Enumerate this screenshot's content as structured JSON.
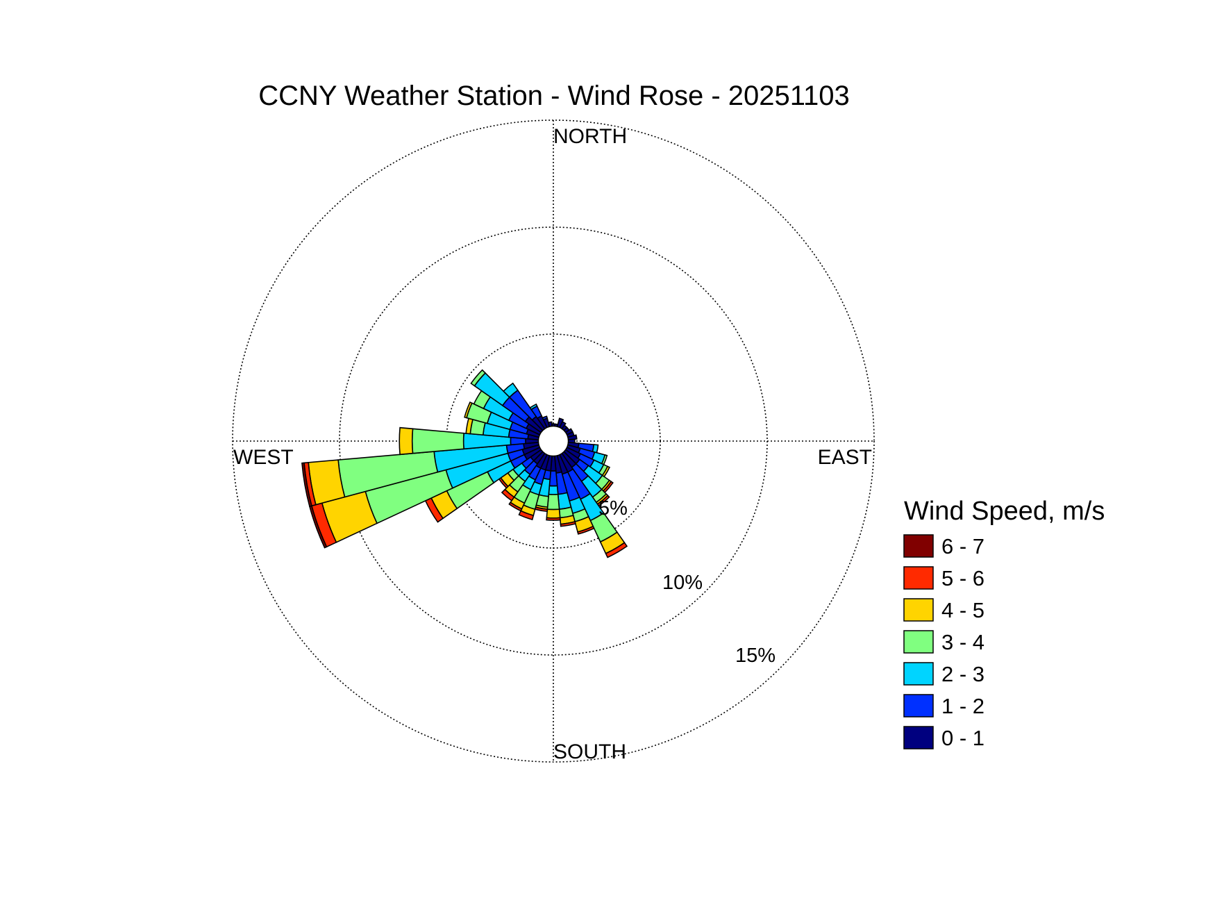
{
  "chart_data": {
    "type": "wind-rose",
    "title": "CCNY Weather Station - Wind Rose - 20251103",
    "directions": {
      "north": "NORTH",
      "south": "SOUTH",
      "east": "EAST",
      "west": "WEST"
    },
    "radial_ticks": [
      {
        "value": 5,
        "label": "5%"
      },
      {
        "value": 10,
        "label": "10%"
      },
      {
        "value": 15,
        "label": "15%"
      }
    ],
    "rmax": 15,
    "grid": true,
    "legend": {
      "title": "Wind Speed, m/s",
      "placement": "right",
      "bins": [
        {
          "label": "6 - 7",
          "color": "#800000"
        },
        {
          "label": "5 - 6",
          "color": "#ff2a00"
        },
        {
          "label": "4 - 5",
          "color": "#ffd400"
        },
        {
          "label": "3 - 4",
          "color": "#80ff80"
        },
        {
          "label": "2 - 3",
          "color": "#00d4ff"
        },
        {
          "label": "1 - 2",
          "color": "#0030ff"
        },
        {
          "label": "0 - 1",
          "color": "#00007f"
        }
      ]
    },
    "sector_width_deg": 10,
    "calm_hole_radius": 0.7,
    "bin_order": [
      "0 - 1",
      "1 - 2",
      "2 - 3",
      "3 - 4",
      "4 - 5",
      "5 - 6",
      "6 - 7"
    ],
    "sectors": [
      {
        "direction_deg": 10,
        "cumulative": [
          0.8,
          0.8,
          0.8,
          0.8,
          0.8,
          0.8,
          0.8
        ]
      },
      {
        "direction_deg": 20,
        "cumulative": [
          1.1,
          1.1,
          1.1,
          1.1,
          1.1,
          1.1,
          1.1
        ]
      },
      {
        "direction_deg": 30,
        "cumulative": [
          1.0,
          1.0,
          1.0,
          1.0,
          1.0,
          1.0,
          1.0
        ]
      },
      {
        "direction_deg": 40,
        "cumulative": [
          0.9,
          0.9,
          0.9,
          0.9,
          0.9,
          0.9,
          0.9
        ]
      },
      {
        "direction_deg": 50,
        "cumulative": [
          0.9,
          0.9,
          0.9,
          0.9,
          0.9,
          0.9,
          0.9
        ]
      },
      {
        "direction_deg": 60,
        "cumulative": [
          1.0,
          1.0,
          1.0,
          1.0,
          1.0,
          1.0,
          1.0
        ]
      },
      {
        "direction_deg": 70,
        "cumulative": [
          1.0,
          1.0,
          1.0,
          1.0,
          1.0,
          1.0,
          1.0
        ]
      },
      {
        "direction_deg": 80,
        "cumulative": [
          1.1,
          1.1,
          1.1,
          1.1,
          1.1,
          1.1,
          1.1
        ]
      },
      {
        "direction_deg": 90,
        "cumulative": [
          1.0,
          1.0,
          1.0,
          1.0,
          1.0,
          1.0,
          1.0
        ]
      },
      {
        "direction_deg": 100,
        "cumulative": [
          1.2,
          1.9,
          2.1,
          2.1,
          2.1,
          2.1,
          2.1
        ]
      },
      {
        "direction_deg": 110,
        "cumulative": [
          1.3,
          2.0,
          2.5,
          2.6,
          2.6,
          2.6,
          2.6
        ]
      },
      {
        "direction_deg": 120,
        "cumulative": [
          1.4,
          2.1,
          2.6,
          2.8,
          2.9,
          2.9,
          2.9
        ]
      },
      {
        "direction_deg": 130,
        "cumulative": [
          1.5,
          2.0,
          2.8,
          3.2,
          3.3,
          3.4,
          3.4
        ]
      },
      {
        "direction_deg": 140,
        "cumulative": [
          1.5,
          2.3,
          3.2,
          3.5,
          3.6,
          3.7,
          3.7
        ]
      },
      {
        "direction_deg": 150,
        "cumulative": [
          1.6,
          3.0,
          4.1,
          5.2,
          5.8,
          6.0,
          6.0
        ]
      },
      {
        "direction_deg": 160,
        "cumulative": [
          1.6,
          2.9,
          3.5,
          3.9,
          4.4,
          4.5,
          4.5
        ]
      },
      {
        "direction_deg": 170,
        "cumulative": [
          1.5,
          2.5,
          3.2,
          3.6,
          3.9,
          4.0,
          4.0
        ]
      },
      {
        "direction_deg": 180,
        "cumulative": [
          1.4,
          2.1,
          2.5,
          3.2,
          3.6,
          3.7,
          3.7
        ]
      },
      {
        "direction_deg": 190,
        "cumulative": [
          1.4,
          1.8,
          2.6,
          3.1,
          3.2,
          3.3,
          3.3
        ]
      },
      {
        "direction_deg": 200,
        "cumulative": [
          1.4,
          2.1,
          2.6,
          3.3,
          3.6,
          3.8,
          3.8
        ]
      },
      {
        "direction_deg": 210,
        "cumulative": [
          1.4,
          2.0,
          2.5,
          3.2,
          3.5,
          3.6,
          3.6
        ]
      },
      {
        "direction_deg": 220,
        "cumulative": [
          1.3,
          1.9,
          2.3,
          2.9,
          3.2,
          3.4,
          3.4
        ]
      },
      {
        "direction_deg": 230,
        "cumulative": [
          1.3,
          1.8,
          2.3,
          2.6,
          3.0,
          3.1,
          3.1
        ]
      },
      {
        "direction_deg": 240,
        "cumulative": [
          1.5,
          2.2,
          3.4,
          5.5,
          6.3,
          6.6,
          6.6
        ]
      },
      {
        "direction_deg": 250,
        "cumulative": [
          1.5,
          2.2,
          5.2,
          9.1,
          11.2,
          11.7,
          11.8
        ]
      },
      {
        "direction_deg": 260,
        "cumulative": [
          1.4,
          2.2,
          5.6,
          10.1,
          11.5,
          11.7,
          11.8
        ]
      },
      {
        "direction_deg": 270,
        "cumulative": [
          1.3,
          2.0,
          4.2,
          6.6,
          7.2,
          7.2,
          7.2
        ]
      },
      {
        "direction_deg": 280,
        "cumulative": [
          1.2,
          2.1,
          3.3,
          3.9,
          4.1,
          4.1,
          4.1
        ]
      },
      {
        "direction_deg": 290,
        "cumulative": [
          1.3,
          2.1,
          3.2,
          4.2,
          4.3,
          4.3,
          4.3
        ]
      },
      {
        "direction_deg": 300,
        "cumulative": [
          1.4,
          2.3,
          3.6,
          4.1,
          4.1,
          4.1,
          4.1
        ]
      },
      {
        "direction_deg": 310,
        "cumulative": [
          1.6,
          2.9,
          4.5,
          4.7,
          4.7,
          4.7,
          4.7
        ]
      },
      {
        "direction_deg": 320,
        "cumulative": [
          1.4,
          2.9,
          3.3,
          3.3,
          3.3,
          3.3,
          3.3
        ]
      },
      {
        "direction_deg": 330,
        "cumulative": [
          1.3,
          1.8,
          1.9,
          1.9,
          1.9,
          1.9,
          1.9
        ]
      },
      {
        "direction_deg": 340,
        "cumulative": [
          1.1,
          1.2,
          1.2,
          1.2,
          1.2,
          1.2,
          1.2
        ]
      },
      {
        "direction_deg": 350,
        "cumulative": [
          0.9,
          0.9,
          0.9,
          0.9,
          0.9,
          0.9,
          0.9
        ]
      },
      {
        "direction_deg": 360,
        "cumulative": [
          0.8,
          0.8,
          0.8,
          0.8,
          0.8,
          0.8,
          0.8
        ]
      }
    ]
  }
}
